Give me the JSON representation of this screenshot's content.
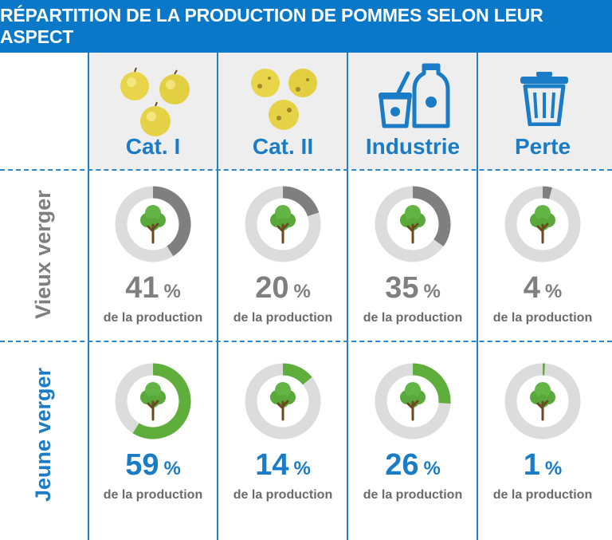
{
  "title": "RÉPARTITION DE LA PRODUCTION DE POMMES SELON LEUR ASPECT",
  "columns": [
    {
      "label": "Cat. I",
      "icon": "apples-icon"
    },
    {
      "label": "Cat. II",
      "icon": "bruised-apples-icon"
    },
    {
      "label": "Industrie",
      "icon": "yogurt-juice-icon"
    },
    {
      "label": "Perte",
      "icon": "trash-can-icon"
    }
  ],
  "rows": [
    {
      "label": "Vieux verger",
      "unit": "%",
      "sub": "de la production"
    },
    {
      "label": "Jeune verger",
      "unit": "%",
      "sub": "de la production"
    }
  ],
  "colors": {
    "header": "#0a78c8",
    "old": "#7f7f7f",
    "young": "#5fae3c",
    "ring": "#dcdcdc",
    "blue_text": "#1a7bc6"
  },
  "chart_data": {
    "type": "table",
    "title": "RÉPARTITION DE LA PRODUCTION DE POMMES SELON LEUR ASPECT",
    "categories": [
      "Cat. I",
      "Cat. II",
      "Industrie",
      "Perte"
    ],
    "series": [
      {
        "name": "Vieux verger",
        "values": [
          41,
          20,
          35,
          4
        ]
      },
      {
        "name": "Jeune verger",
        "values": [
          59,
          14,
          26,
          1
        ]
      }
    ],
    "unit": "%",
    "value_label": "de la production"
  }
}
